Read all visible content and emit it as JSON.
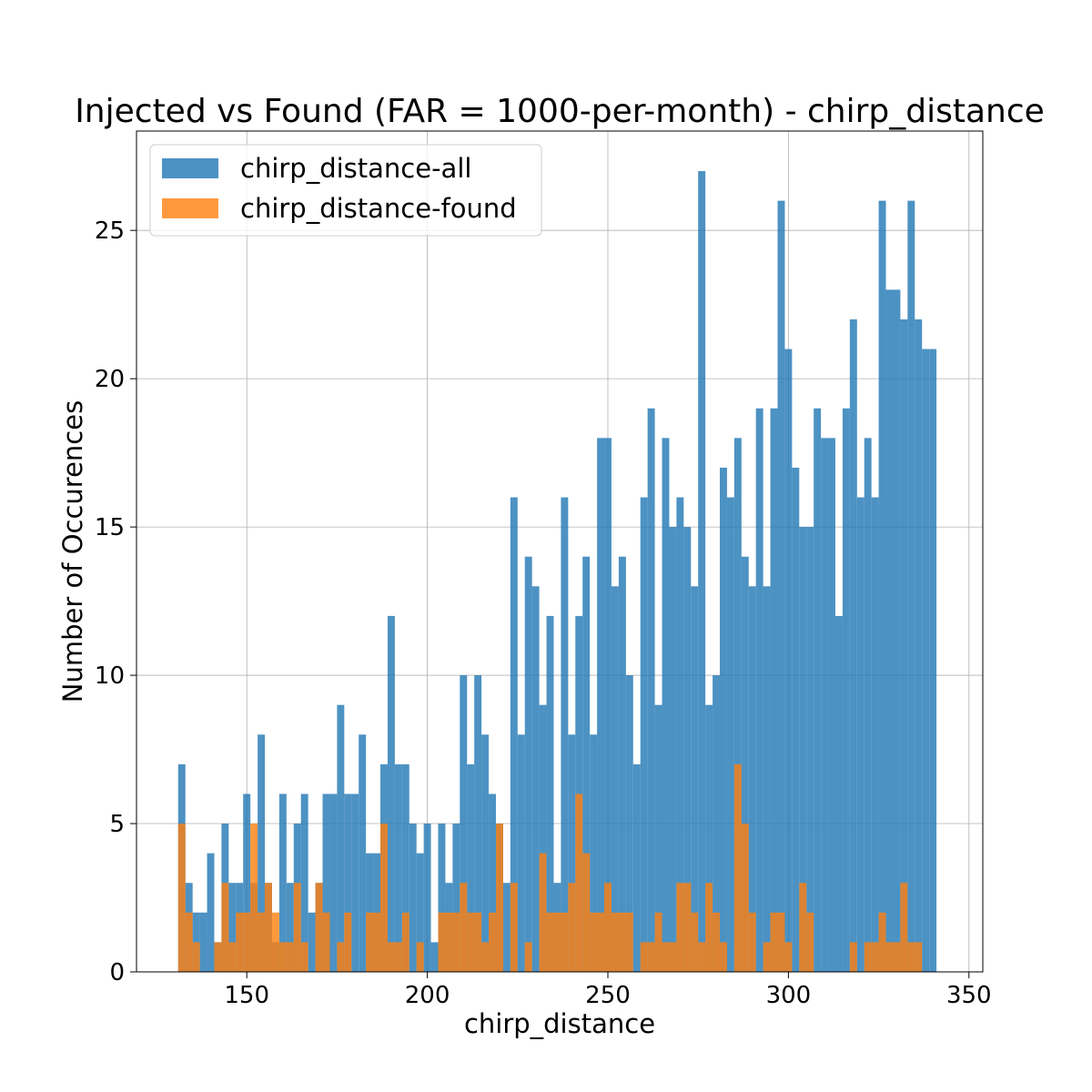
{
  "chart_data": {
    "type": "bar",
    "title": "Injected vs Found (FAR = 1000-per-month) - chirp_distance",
    "xlabel": "chirp_distance",
    "ylabel": "Number of Occurences",
    "xlim": [
      119.46,
      353.83
    ],
    "ylim": [
      0,
      28.35
    ],
    "xticks": [
      150,
      200,
      250,
      300,
      350
    ],
    "yticks": [
      0,
      5,
      10,
      15,
      20,
      25
    ],
    "grid": true,
    "legend_position": "top-left",
    "bin_start": 131.0,
    "bin_width": 2.0,
    "series": [
      {
        "name": "chirp_distance-all",
        "color": "#1f77b4",
        "alpha": 0.8,
        "values": [
          7,
          3,
          2,
          2,
          4,
          1,
          5,
          3,
          3,
          6,
          3,
          8,
          3,
          1,
          6,
          3,
          5,
          6,
          2,
          3,
          6,
          6,
          9,
          6,
          6,
          8,
          4,
          4,
          7,
          12,
          7,
          7,
          5,
          4,
          5,
          1,
          5,
          3,
          5,
          10,
          7,
          10,
          8,
          6,
          5,
          3,
          16,
          8,
          14,
          13,
          9,
          12,
          3,
          16,
          8,
          12,
          14,
          8,
          18,
          18,
          13,
          14,
          10,
          7,
          16,
          19,
          9,
          18,
          15,
          16,
          15,
          13,
          27,
          9,
          10,
          17,
          16,
          18,
          14,
          13,
          19,
          13,
          19,
          26,
          21,
          17,
          15,
          15,
          19,
          18,
          18,
          12,
          19,
          22,
          16,
          18,
          16,
          26,
          23,
          23,
          22,
          26,
          22,
          21,
          21
        ]
      },
      {
        "name": "chirp_distance-found",
        "color": "#ff7f0e",
        "alpha": 0.8,
        "values": [
          5,
          2,
          1,
          0,
          0,
          1,
          3,
          1,
          2,
          2,
          5,
          2,
          3,
          2,
          1,
          1,
          3,
          1,
          0,
          3,
          2,
          0,
          1,
          2,
          0,
          0,
          2,
          2,
          5,
          1,
          1,
          2,
          0,
          1,
          0,
          0,
          2,
          2,
          2,
          3,
          2,
          2,
          1,
          2,
          5,
          0,
          3,
          0,
          1,
          0,
          4,
          2,
          2,
          2,
          3,
          6,
          4,
          2,
          2,
          3,
          2,
          2,
          2,
          0,
          1,
          1,
          2,
          1,
          1,
          3,
          3,
          2,
          1,
          3,
          2,
          1,
          0,
          7,
          5,
          2,
          0,
          1,
          2,
          2,
          1,
          0,
          3,
          2,
          0,
          0,
          0,
          0,
          0,
          1,
          0,
          1,
          1,
          2,
          1,
          1,
          3,
          1,
          1,
          0
        ]
      }
    ]
  }
}
